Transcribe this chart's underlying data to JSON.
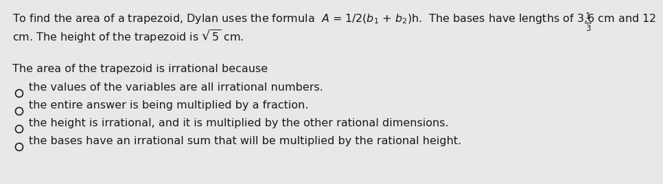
{
  "bg_color": "#e8e8e8",
  "text_color": "#1a1a1a",
  "line1_main": "To find the area of a trapezoid, Dylan uses the formula  $A$ = 1/2($b_1$ + $b_2$)h.  The bases have lengths of 3.6 cm and 12",
  "fraction_superscript": "1",
  "fraction_subscript": "3",
  "line2": "cm. The height of the trapezoid is $\\sqrt{5}$ cm.",
  "line3": "The area of the trapezoid is irrational because",
  "options": [
    "the values of the variables are all irrational numbers.",
    "the entire answer is being multiplied by a fraction.",
    "the height is irrational, and it is multiplied by the other rational dimensions.",
    "the bases have an irrational sum that will be multiplied by the rational height."
  ],
  "font_size": 11.5,
  "text_color_hex": "#1a1a1a"
}
